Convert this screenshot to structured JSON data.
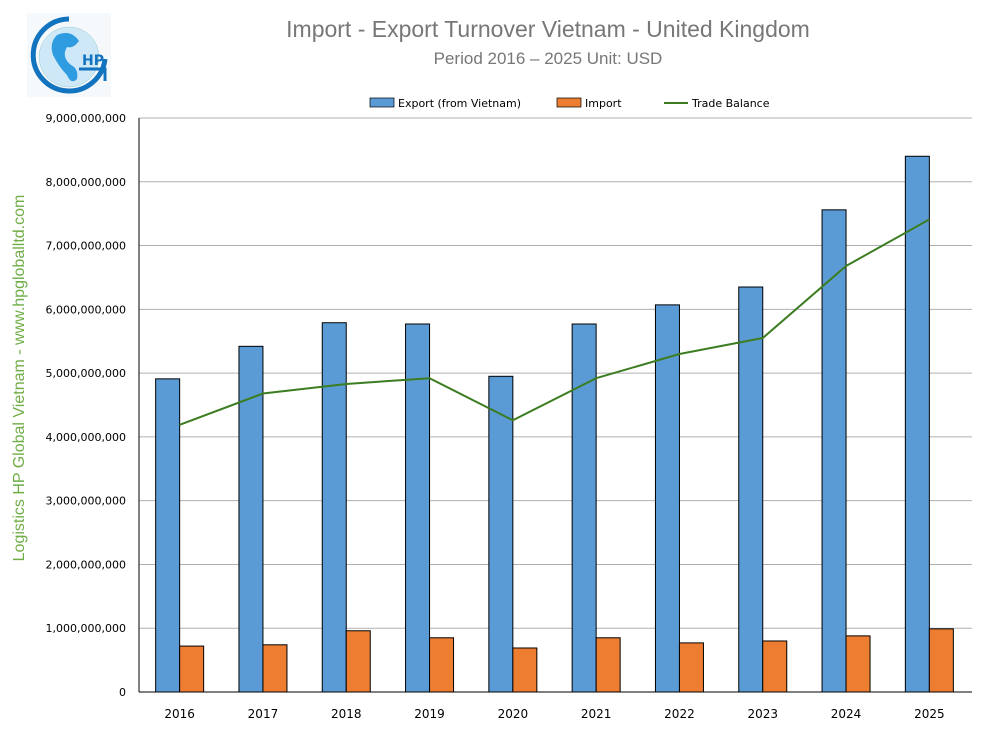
{
  "header": {
    "title": "Import - Export Turnover Vietnam - United Kingdom",
    "subtitle": "Period 2016 – 2025  Unit: USD",
    "side_label": "Logistics HP Global Vietnam - www.hpgloballtd.com",
    "logo_text": "HP"
  },
  "chart_data": {
    "type": "bar",
    "title": "Import - Export Turnover Vietnam - United Kingdom",
    "subtitle": "Period 2016 – 2025  Unit: USD",
    "categories": [
      "2016",
      "2017",
      "2018",
      "2019",
      "2020",
      "2021",
      "2022",
      "2023",
      "2024",
      "2025"
    ],
    "series": [
      {
        "name": "Export (from Vietnam)",
        "type": "bar",
        "color": "#5b9bd5",
        "values": [
          4910000000,
          5420000000,
          5790000000,
          5770000000,
          4950000000,
          5770000000,
          6070000000,
          6350000000,
          7560000000,
          8400000000
        ]
      },
      {
        "name": "Import",
        "type": "bar",
        "color": "#ed7d31",
        "values": [
          720000000,
          740000000,
          960000000,
          850000000,
          690000000,
          850000000,
          770000000,
          800000000,
          880000000,
          990000000
        ]
      },
      {
        "name": "Trade Balance",
        "type": "line",
        "color": "#3c7d22",
        "values": [
          4190000000,
          4680000000,
          4830000000,
          4920000000,
          4260000000,
          4920000000,
          5300000000,
          5550000000,
          6680000000,
          7410000000
        ]
      }
    ],
    "yticks": [
      "0",
      "1,000,000,000",
      "2,000,000,000",
      "3,000,000,000",
      "4,000,000,000",
      "5,000,000,000",
      "6,000,000,000",
      "7,000,000,000",
      "8,000,000,000",
      "9,000,000,000"
    ],
    "ylim": [
      0,
      9000000000
    ],
    "grid": true,
    "legend": "top"
  }
}
